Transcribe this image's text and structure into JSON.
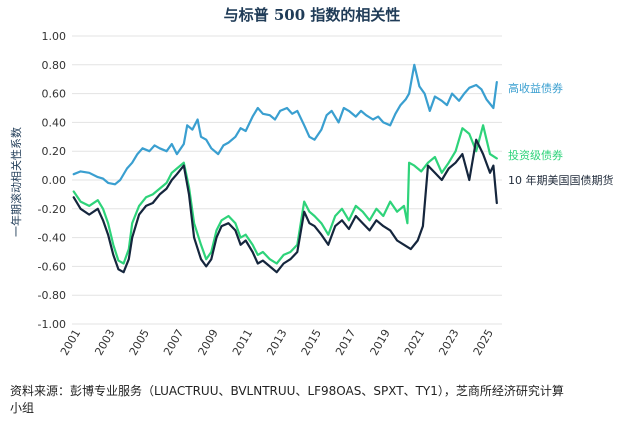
{
  "chart_data": {
    "type": "line",
    "title": "与标普 500 指数的相关性",
    "ylabel": "一年期滚动相关性系数",
    "xlabel": "",
    "ylim": [
      -1.0,
      1.0
    ],
    "xlim": [
      2000.5,
      2025.5
    ],
    "yticks": [
      "1.00",
      "0.80",
      "0.60",
      "0.40",
      "0.20",
      "0.00",
      "-0.20",
      "-0.40",
      "-0.60",
      "-0.80",
      "-1.00"
    ],
    "ytick_values": [
      1.0,
      0.8,
      0.6,
      0.4,
      0.2,
      0.0,
      -0.2,
      -0.4,
      -0.6,
      -0.8,
      -1.0
    ],
    "xticks": [
      "2001",
      "2003",
      "2005",
      "2007",
      "2009",
      "2011",
      "2013",
      "2015",
      "2017",
      "2019",
      "2021",
      "2023",
      "2025"
    ],
    "xtick_values": [
      2001,
      2003,
      2005,
      2007,
      2009,
      2011,
      2013,
      2015,
      2017,
      2019,
      2021,
      2023,
      2025
    ],
    "grid": true,
    "legend": "right, inline labels",
    "series": [
      {
        "name": "高收益债券",
        "color": "#3a9fd0",
        "x": [
          2000.6,
          2001.0,
          2001.5,
          2002.0,
          2002.3,
          2002.6,
          2003.0,
          2003.3,
          2003.7,
          2004.0,
          2004.3,
          2004.6,
          2005.0,
          2005.3,
          2005.6,
          2006.0,
          2006.3,
          2006.6,
          2007.0,
          2007.2,
          2007.5,
          2007.8,
          2008.0,
          2008.3,
          2008.6,
          2009.0,
          2009.3,
          2009.6,
          2010.0,
          2010.3,
          2010.6,
          2011.0,
          2011.3,
          2011.6,
          2012.0,
          2012.3,
          2012.6,
          2013.0,
          2013.3,
          2013.6,
          2014.0,
          2014.3,
          2014.6,
          2015.0,
          2015.3,
          2015.6,
          2016.0,
          2016.3,
          2016.6,
          2017.0,
          2017.3,
          2017.6,
          2018.0,
          2018.3,
          2018.6,
          2019.0,
          2019.3,
          2019.6,
          2019.9,
          2020.1,
          2020.4,
          2020.7,
          2021.0,
          2021.3,
          2021.6,
          2022.0,
          2022.3,
          2022.6,
          2023.0,
          2023.3,
          2023.6,
          2024.0,
          2024.3,
          2024.6,
          2025.0,
          2025.2
        ],
        "values": [
          0.04,
          0.06,
          0.05,
          0.02,
          0.01,
          -0.02,
          -0.03,
          0.0,
          0.08,
          0.12,
          0.18,
          0.22,
          0.2,
          0.24,
          0.22,
          0.2,
          0.25,
          0.18,
          0.25,
          0.38,
          0.35,
          0.42,
          0.3,
          0.28,
          0.22,
          0.18,
          0.24,
          0.26,
          0.3,
          0.36,
          0.34,
          0.44,
          0.5,
          0.46,
          0.45,
          0.42,
          0.48,
          0.5,
          0.46,
          0.48,
          0.38,
          0.3,
          0.28,
          0.35,
          0.45,
          0.48,
          0.4,
          0.5,
          0.48,
          0.44,
          0.48,
          0.45,
          0.42,
          0.44,
          0.4,
          0.38,
          0.46,
          0.52,
          0.56,
          0.6,
          0.8,
          0.65,
          0.6,
          0.48,
          0.58,
          0.55,
          0.52,
          0.6,
          0.55,
          0.6,
          0.64,
          0.66,
          0.63,
          0.56,
          0.5,
          0.68
        ]
      },
      {
        "name": "投资级债券",
        "color": "#2ed37a",
        "x": [
          2000.6,
          2001.0,
          2001.5,
          2002.0,
          2002.3,
          2002.6,
          2002.9,
          2003.2,
          2003.5,
          2003.8,
          2004.0,
          2004.4,
          2004.8,
          2005.2,
          2005.6,
          2006.0,
          2006.3,
          2006.6,
          2007.0,
          2007.3,
          2007.6,
          2008.0,
          2008.3,
          2008.6,
          2008.9,
          2009.2,
          2009.6,
          2010.0,
          2010.3,
          2010.6,
          2011.0,
          2011.3,
          2011.6,
          2012.0,
          2012.4,
          2012.8,
          2013.2,
          2013.6,
          2014.0,
          2014.3,
          2014.6,
          2015.0,
          2015.4,
          2015.8,
          2016.2,
          2016.6,
          2017.0,
          2017.4,
          2017.8,
          2018.2,
          2018.6,
          2019.0,
          2019.4,
          2019.8,
          2020.0,
          2020.1,
          2020.4,
          2020.8,
          2021.2,
          2021.6,
          2022.0,
          2022.4,
          2022.8,
          2023.2,
          2023.6,
          2024.0,
          2024.4,
          2024.8,
          2025.2
        ],
        "values": [
          -0.08,
          -0.15,
          -0.18,
          -0.14,
          -0.2,
          -0.3,
          -0.45,
          -0.56,
          -0.58,
          -0.48,
          -0.3,
          -0.18,
          -0.12,
          -0.1,
          -0.06,
          -0.02,
          0.05,
          0.08,
          0.12,
          -0.05,
          -0.3,
          -0.45,
          -0.55,
          -0.5,
          -0.35,
          -0.28,
          -0.25,
          -0.3,
          -0.4,
          -0.38,
          -0.45,
          -0.52,
          -0.5,
          -0.55,
          -0.58,
          -0.52,
          -0.5,
          -0.45,
          -0.15,
          -0.22,
          -0.25,
          -0.3,
          -0.38,
          -0.25,
          -0.2,
          -0.28,
          -0.18,
          -0.22,
          -0.28,
          -0.2,
          -0.25,
          -0.15,
          -0.22,
          -0.18,
          -0.3,
          0.12,
          0.1,
          0.06,
          0.12,
          0.16,
          0.05,
          0.12,
          0.2,
          0.36,
          0.32,
          0.2,
          0.38,
          0.18,
          0.15
        ]
      },
      {
        "name": "10 年期美国国债期货",
        "color": "#15263d",
        "x": [
          2000.6,
          2001.0,
          2001.5,
          2002.0,
          2002.3,
          2002.6,
          2002.9,
          2003.2,
          2003.5,
          2003.8,
          2004.0,
          2004.4,
          2004.8,
          2005.2,
          2005.6,
          2006.0,
          2006.3,
          2006.6,
          2007.0,
          2007.3,
          2007.6,
          2008.0,
          2008.3,
          2008.6,
          2008.9,
          2009.2,
          2009.6,
          2010.0,
          2010.3,
          2010.6,
          2011.0,
          2011.3,
          2011.6,
          2012.0,
          2012.4,
          2012.8,
          2013.2,
          2013.6,
          2014.0,
          2014.3,
          2014.6,
          2015.0,
          2015.4,
          2015.8,
          2016.2,
          2016.6,
          2017.0,
          2017.4,
          2017.8,
          2018.2,
          2018.6,
          2019.0,
          2019.4,
          2019.8,
          2020.2,
          2020.6,
          2020.9,
          2021.2,
          2021.6,
          2022.0,
          2022.4,
          2022.8,
          2023.2,
          2023.6,
          2024.0,
          2024.4,
          2024.8,
          2025.0,
          2025.2
        ],
        "values": [
          -0.12,
          -0.2,
          -0.24,
          -0.2,
          -0.28,
          -0.38,
          -0.52,
          -0.62,
          -0.64,
          -0.55,
          -0.4,
          -0.24,
          -0.18,
          -0.16,
          -0.1,
          -0.06,
          0.0,
          0.04,
          0.1,
          -0.1,
          -0.4,
          -0.55,
          -0.6,
          -0.55,
          -0.4,
          -0.32,
          -0.3,
          -0.35,
          -0.45,
          -0.42,
          -0.5,
          -0.58,
          -0.56,
          -0.6,
          -0.64,
          -0.58,
          -0.55,
          -0.5,
          -0.22,
          -0.3,
          -0.32,
          -0.38,
          -0.45,
          -0.32,
          -0.28,
          -0.34,
          -0.25,
          -0.3,
          -0.35,
          -0.28,
          -0.32,
          -0.35,
          -0.42,
          -0.45,
          -0.48,
          -0.42,
          -0.32,
          0.1,
          0.05,
          0.0,
          0.08,
          0.12,
          0.18,
          0.0,
          0.28,
          0.18,
          0.05,
          0.1,
          -0.16
        ]
      }
    ]
  },
  "footer": {
    "source_line1": "资料来源：彭博专业服务（LUACTRUU、BVLNTRUU、LF98OAS、SPXT、TY1），芝商所经济研究计算",
    "source_line2": "小组"
  }
}
